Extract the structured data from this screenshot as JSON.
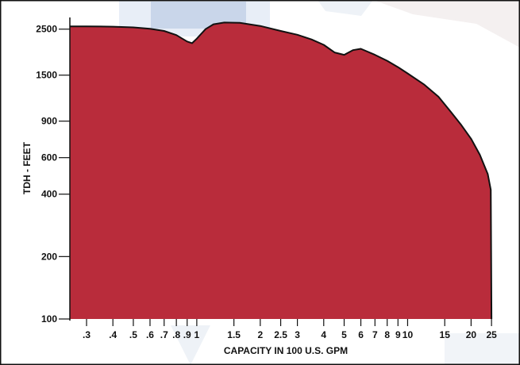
{
  "chart_data": {
    "type": "area",
    "title": "",
    "xlabel": "CAPACITY IN 100 U.S. GPM",
    "ylabel": "TDH - FEET",
    "x_scale": "log",
    "y_scale": "log",
    "xlim": [
      0.25,
      27
    ],
    "ylim": [
      100,
      2700
    ],
    "grid": false,
    "legend": "none",
    "colors": {
      "fill": "#b92c3b",
      "outline": "#111111",
      "background": "#ffffff",
      "watermark": "#c9d6ea"
    },
    "x_ticks": [
      {
        "value": 0.3,
        "label": ".3"
      },
      {
        "value": 0.4,
        "label": ".4"
      },
      {
        "value": 0.5,
        "label": ".5"
      },
      {
        "value": 0.6,
        "label": ".6"
      },
      {
        "value": 0.7,
        "label": ".7"
      },
      {
        "value": 0.8,
        "label": ".8"
      },
      {
        "value": 0.9,
        "label": ".9"
      },
      {
        "value": 1,
        "label": "1"
      },
      {
        "value": 1.5,
        "label": "1.5"
      },
      {
        "value": 2,
        "label": "2"
      },
      {
        "value": 2.5,
        "label": "2.5"
      },
      {
        "value": 3,
        "label": "3"
      },
      {
        "value": 4,
        "label": "4"
      },
      {
        "value": 5,
        "label": "5"
      },
      {
        "value": 6,
        "label": "6"
      },
      {
        "value": 7,
        "label": "7"
      },
      {
        "value": 8,
        "label": "8"
      },
      {
        "value": 9,
        "label": "9"
      },
      {
        "value": 10,
        "label": "10"
      },
      {
        "value": 15,
        "label": "15"
      },
      {
        "value": 20,
        "label": "20"
      },
      {
        "value": 25,
        "label": "25"
      }
    ],
    "y_ticks": [
      {
        "value": 100,
        "label": "100"
      },
      {
        "value": 200,
        "label": "200"
      },
      {
        "value": 400,
        "label": "400"
      },
      {
        "value": 600,
        "label": "600"
      },
      {
        "value": 900,
        "label": "900"
      },
      {
        "value": 1500,
        "label": "1500"
      },
      {
        "value": 2500,
        "label": "2500"
      }
    ],
    "series": [
      {
        "values": [
          [
            0.25,
            2580
          ],
          [
            0.3,
            2580
          ],
          [
            0.4,
            2570
          ],
          [
            0.5,
            2550
          ],
          [
            0.6,
            2510
          ],
          [
            0.7,
            2450
          ],
          [
            0.8,
            2340
          ],
          [
            0.9,
            2180
          ],
          [
            0.95,
            2140
          ],
          [
            1.0,
            2250
          ],
          [
            1.1,
            2500
          ],
          [
            1.2,
            2640
          ],
          [
            1.35,
            2690
          ],
          [
            1.6,
            2680
          ],
          [
            2.0,
            2590
          ],
          [
            2.5,
            2450
          ],
          [
            3.0,
            2350
          ],
          [
            3.5,
            2230
          ],
          [
            4.0,
            2100
          ],
          [
            4.5,
            1930
          ],
          [
            5.0,
            1880
          ],
          [
            5.5,
            1980
          ],
          [
            6.0,
            2010
          ],
          [
            7.0,
            1880
          ],
          [
            8.0,
            1760
          ],
          [
            9.0,
            1640
          ],
          [
            10.0,
            1530
          ],
          [
            12.0,
            1350
          ],
          [
            14.0,
            1180
          ],
          [
            16.0,
            1000
          ],
          [
            18.0,
            860
          ],
          [
            20.0,
            740
          ],
          [
            22.0,
            620
          ],
          [
            24.0,
            500
          ],
          [
            24.8,
            420
          ],
          [
            25.0,
            100
          ]
        ]
      }
    ]
  }
}
